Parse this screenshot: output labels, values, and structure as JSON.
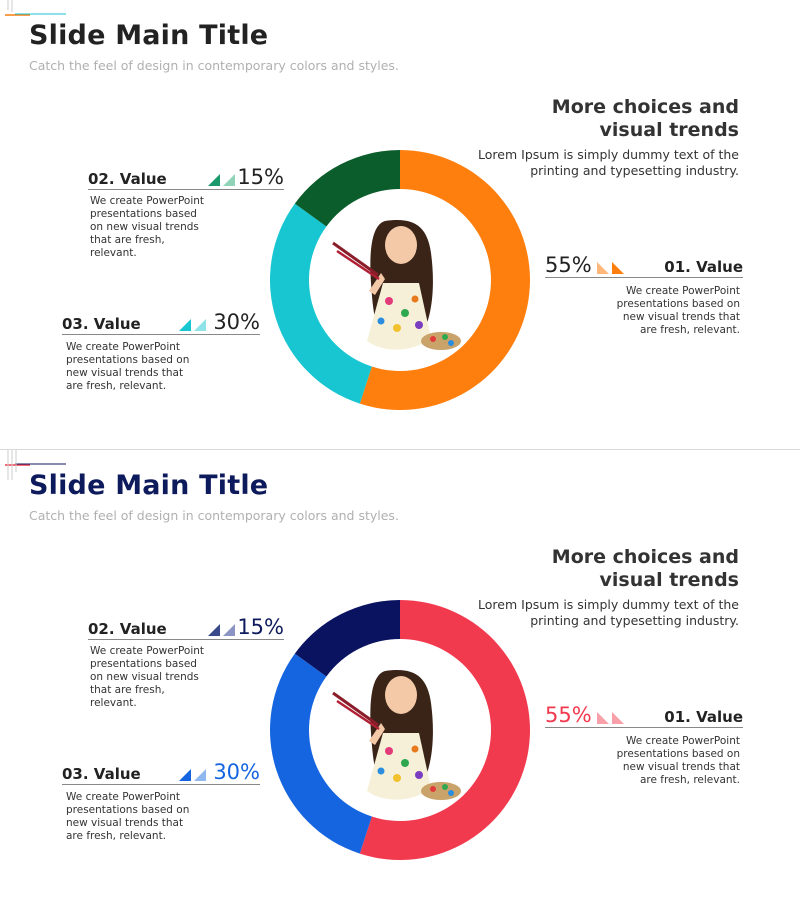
{
  "slides": [
    {
      "title": "Slide Main Title",
      "subtitle": "Catch the feel of design in contemporary colors and styles.",
      "right_heading_line1": "More choices and",
      "right_heading_line2": "visual trends",
      "right_desc_line1": "Lorem Ipsum is simply dummy text of the",
      "right_desc_line2": "printing and typesetting industry.",
      "title_color": "#222222",
      "values": [
        {
          "label": "01. Value",
          "percent": "55%",
          "desc": [
            "We create PowerPoint",
            "presentations based on",
            "new visual trends that",
            "are fresh, relevant."
          ],
          "color": "#ff7f0e",
          "light": "#ffb87a"
        },
        {
          "label": "02. Value",
          "percent": "15%",
          "desc": [
            "We create PowerPoint",
            "presentations based",
            "on new visual trends",
            "that are fresh,",
            "relevant."
          ],
          "color": "#1a9a6c",
          "light": "#8fd3b9"
        },
        {
          "label": "03. Value",
          "percent": "30%",
          "desc": [
            "We create PowerPoint",
            "presentations based on",
            "new visual trends that",
            "are fresh, relevant."
          ],
          "color": "#17c6d1",
          "light": "#8ee3e8"
        }
      ]
    },
    {
      "title": "Slide Main Title",
      "subtitle": "Catch the feel of design in contemporary colors and styles.",
      "right_heading_line1": "More choices and",
      "right_heading_line2": "visual trends",
      "right_desc_line1": "Lorem Ipsum is simply dummy text of the",
      "right_desc_line2": "printing and typesetting industry.",
      "title_color": "#0d1a5c",
      "values": [
        {
          "label": "01. Value",
          "percent": "55%",
          "desc": [
            "We create PowerPoint",
            "presentations based on",
            "new visual trends that",
            "are fresh, relevant."
          ],
          "color": "#f23a4f",
          "light": "#f7a0aa"
        },
        {
          "label": "02. Value",
          "percent": "15%",
          "desc": [
            "We create PowerPoint",
            "presentations based",
            "on new visual trends",
            "that are fresh,",
            "relevant."
          ],
          "color": "#0d1a5c",
          "light": "#8b94c2"
        },
        {
          "label": "03. Value",
          "percent": "30%",
          "desc": [
            "We create PowerPoint",
            "presentations based on",
            "new visual trends that",
            "are fresh, relevant."
          ],
          "color": "#1565e0",
          "light": "#8fb7f0"
        }
      ]
    }
  ],
  "chart_data": [
    {
      "type": "pie",
      "categories": [
        "01. Value",
        "02. Value",
        "03. Value"
      ],
      "values": [
        55,
        15,
        30
      ],
      "colors": [
        "#ff7f0e",
        "#0b5e2b",
        "#17c6d1"
      ]
    },
    {
      "type": "pie",
      "categories": [
        "01. Value",
        "02. Value",
        "03. Value"
      ],
      "values": [
        55,
        15,
        30
      ],
      "colors": [
        "#f23a4f",
        "#0a1360",
        "#1565e0"
      ]
    }
  ]
}
